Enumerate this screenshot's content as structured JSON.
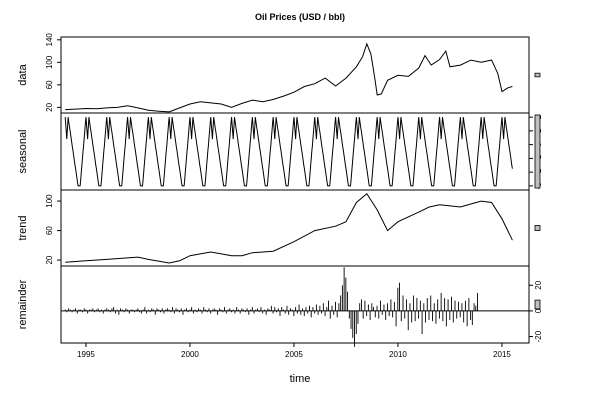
{
  "chart_data": {
    "type": "line",
    "title": "Oil Prices (USD / bbl)",
    "xlabel": "time",
    "xlim": [
      1993.8,
      2016.3
    ],
    "x_ticks": [
      1995,
      2000,
      2005,
      2010,
      2015
    ],
    "panels": [
      {
        "name": "data",
        "ylim": [
          10,
          145
        ],
        "y_ticks": [
          20,
          60,
          100,
          140
        ],
        "tick_side": "left",
        "range_bar": 0.05,
        "points": [
          [
            1994.0,
            16
          ],
          [
            1994.5,
            17
          ],
          [
            1995.0,
            18
          ],
          [
            1995.5,
            17.5
          ],
          [
            1996.0,
            19
          ],
          [
            1996.5,
            20
          ],
          [
            1997.0,
            23
          ],
          [
            1997.5,
            19
          ],
          [
            1998.0,
            15
          ],
          [
            1998.5,
            13
          ],
          [
            1999.0,
            12
          ],
          [
            1999.5,
            19
          ],
          [
            2000.0,
            26
          ],
          [
            2000.5,
            30
          ],
          [
            2001.0,
            28
          ],
          [
            2001.5,
            26
          ],
          [
            2002.0,
            20
          ],
          [
            2002.5,
            27
          ],
          [
            2003.0,
            33
          ],
          [
            2003.5,
            30
          ],
          [
            2004.0,
            34
          ],
          [
            2004.5,
            40
          ],
          [
            2005.0,
            47
          ],
          [
            2005.5,
            57
          ],
          [
            2006.0,
            62
          ],
          [
            2006.5,
            72
          ],
          [
            2007.0,
            58
          ],
          [
            2007.5,
            72
          ],
          [
            2008.0,
            92
          ],
          [
            2008.3,
            110
          ],
          [
            2008.5,
            133
          ],
          [
            2008.7,
            115
          ],
          [
            2008.9,
            68
          ],
          [
            2009.0,
            42
          ],
          [
            2009.2,
            44
          ],
          [
            2009.5,
            68
          ],
          [
            2010.0,
            77
          ],
          [
            2010.5,
            75
          ],
          [
            2011.0,
            90
          ],
          [
            2011.3,
            112
          ],
          [
            2011.6,
            95
          ],
          [
            2012.0,
            105
          ],
          [
            2012.3,
            120
          ],
          [
            2012.5,
            92
          ],
          [
            2013.0,
            95
          ],
          [
            2013.5,
            104
          ],
          [
            2014.0,
            100
          ],
          [
            2014.5,
            104
          ],
          [
            2014.8,
            80
          ],
          [
            2015.0,
            48
          ],
          [
            2015.3,
            55
          ],
          [
            2015.5,
            57
          ]
        ]
      },
      {
        "name": "seasonal",
        "ylim": [
          -3.3,
          2.3
        ],
        "y_ticks": [
          -3,
          -2,
          -1,
          0,
          1,
          2
        ],
        "tick_side": "right",
        "range_bar": 1.0,
        "cycle": {
          "start": 1994.0,
          "end": 2015.5,
          "period": 1.0,
          "max": 2.0,
          "min": -3.0
        }
      },
      {
        "name": "trend",
        "ylim": [
          12,
          115
        ],
        "y_ticks": [
          20,
          60,
          100
        ],
        "tick_side": "left",
        "range_bar": 0.07,
        "points": [
          [
            1994.0,
            17
          ],
          [
            1995.0,
            19
          ],
          [
            1996.0,
            21
          ],
          [
            1997.0,
            23
          ],
          [
            1997.5,
            24
          ],
          [
            1998.0,
            21
          ],
          [
            1999.0,
            16
          ],
          [
            1999.5,
            19
          ],
          [
            2000.0,
            26
          ],
          [
            2001.0,
            31
          ],
          [
            2002.0,
            26
          ],
          [
            2002.5,
            26
          ],
          [
            2003.0,
            30
          ],
          [
            2004.0,
            32
          ],
          [
            2005.0,
            45
          ],
          [
            2006.0,
            60
          ],
          [
            2007.0,
            66
          ],
          [
            2007.5,
            72
          ],
          [
            2008.0,
            98
          ],
          [
            2008.5,
            110
          ],
          [
            2009.0,
            88
          ],
          [
            2009.5,
            60
          ],
          [
            2010.0,
            72
          ],
          [
            2011.0,
            85
          ],
          [
            2011.5,
            92
          ],
          [
            2012.0,
            95
          ],
          [
            2013.0,
            92
          ],
          [
            2013.5,
            96
          ],
          [
            2014.0,
            100
          ],
          [
            2014.5,
            98
          ],
          [
            2015.0,
            76
          ],
          [
            2015.5,
            47
          ]
        ]
      },
      {
        "name": "remainder",
        "ylim": [
          -25,
          35
        ],
        "y_ticks": [
          -20,
          0,
          20
        ],
        "tick_side": "right",
        "range_bar": 0.12,
        "bars": {
          "start": 1994.0,
          "step": 0.0833,
          "values": [
            1,
            -1,
            2,
            1,
            -1,
            1,
            2,
            -2,
            1,
            1,
            -1,
            2,
            1,
            -2,
            1,
            1,
            2,
            -1,
            1,
            2,
            -1,
            1,
            -2,
            1,
            2,
            1,
            -1,
            2,
            3,
            -2,
            1,
            -3,
            2,
            1,
            -1,
            2,
            1,
            -2,
            1,
            1,
            -1,
            1,
            2,
            -1,
            -2,
            1,
            3,
            -2,
            1,
            -1,
            2,
            1,
            -3,
            2,
            1,
            -1,
            2,
            -2,
            1,
            2,
            1,
            -1,
            3,
            -2,
            2,
            1,
            -1,
            2,
            -3,
            1,
            2,
            -1,
            1,
            3,
            -2,
            1,
            -1,
            2,
            1,
            -2,
            3,
            1,
            -1,
            2,
            -2,
            1,
            2,
            1,
            -3,
            2,
            1,
            -1,
            3,
            -2,
            1,
            2,
            -1,
            1,
            -2,
            3,
            1,
            -2,
            2,
            1,
            -1,
            2,
            -3,
            1,
            3,
            -2,
            1,
            2,
            -1,
            3,
            -2,
            1,
            -3,
            2,
            1,
            4,
            -2,
            3,
            -1,
            2,
            -4,
            3,
            1,
            -2,
            4,
            -3,
            2,
            1,
            -4,
            3,
            -2,
            5,
            -3,
            2,
            -4,
            3,
            -2,
            4,
            -5,
            3,
            -2,
            5,
            -3,
            4,
            -2,
            6,
            -4,
            3,
            8,
            -6,
            4,
            -3,
            7,
            -5,
            6,
            12,
            20,
            34,
            26,
            15,
            -6,
            -14,
            -21,
            -28,
            -18,
            -10,
            6,
            9,
            -6,
            8,
            -4,
            5,
            -7,
            6,
            3,
            -5,
            4,
            -6,
            8,
            -3,
            5,
            -7,
            6,
            -4,
            9,
            -5,
            7,
            -12,
            18,
            22,
            -8,
            12,
            -6,
            9,
            -15,
            6,
            -9,
            12,
            -8,
            10,
            -6,
            8,
            -18,
            6,
            -9,
            10,
            -7,
            12,
            -8,
            6,
            -10,
            9,
            -6,
            14,
            -8,
            10,
            -12,
            9,
            -7,
            11,
            -9,
            8,
            -6,
            7,
            -5,
            6,
            -9,
            8,
            -12,
            10,
            -7,
            -11,
            6,
            4,
            14
          ]
        }
      }
    ]
  }
}
